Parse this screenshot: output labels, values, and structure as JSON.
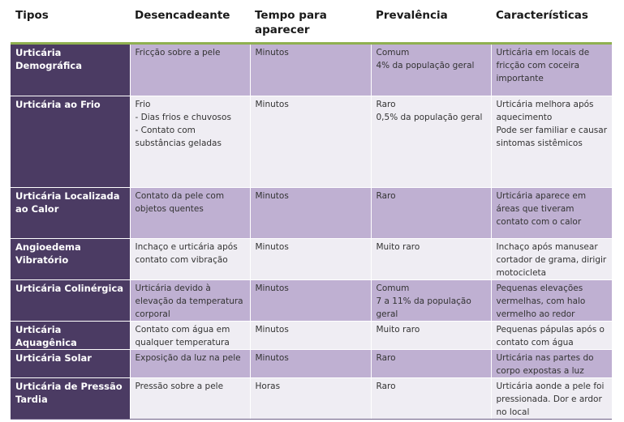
{
  "headers": [
    "Tipos",
    "Desencadeante",
    "Tempo para aparecer",
    "Prevalência",
    "Características"
  ],
  "rows": [
    {
      "tipo": "Urticária Demográfica",
      "desencadeante": "Fricção sobre a pele",
      "tempo": "Minutos",
      "prevalencia": "Comum\n4% da população geral",
      "caracteristicas": "Urticária em locais de fricção com coceira importante"
    },
    {
      "tipo": "Urticária ao Frio",
      "desencadeante": "Frio\n- Dias frios e chuvosos\n- Contato com substâncias geladas",
      "tempo": "Minutos",
      "prevalencia": "Raro\n0,5% da população geral",
      "caracteristicas": "Urticária melhora após aquecimento\nPode ser familiar e causar sintomas sistêmicos"
    },
    {
      "tipo": "Urticária Localizada ao Calor",
      "desencadeante": "Contato da pele com objetos quentes",
      "tempo": "Minutos",
      "prevalencia": "Raro",
      "caracteristicas": "Urticária aparece em áreas que tiveram contato com o calor"
    },
    {
      "tipo": "Angioedema Vibratório",
      "desencadeante": "Inchaço e urticária após contato com vibração",
      "tempo": "Minutos",
      "prevalencia": "Muito raro",
      "caracteristicas": "Inchaço após manusear cortador de grama, dirigir motocicleta"
    },
    {
      "tipo": "Urticária Colinérgica",
      "desencadeante": "Urticária devido à elevação da temperatura corporal",
      "tempo": "Minutos",
      "prevalencia": "Comum\n7 a 11% da população geral",
      "caracteristicas": "Pequenas elevações vermelhas, com halo vermelho ao redor"
    },
    {
      "tipo": "Urticária Aquagênica",
      "desencadeante": "Contato com água em qualquer temperatura",
      "tempo": "Minutos",
      "prevalencia": "Muito raro",
      "caracteristicas": "Pequenas pápulas após o contato com água"
    },
    {
      "tipo": "Urticária Solar",
      "desencadeante": "Exposição da luz na pele",
      "tempo": "Minutos",
      "prevalencia": "Raro",
      "caracteristicas": "Urticária nas partes do corpo expostas a luz"
    },
    {
      "tipo": "Urticária de Pressão Tardia",
      "desencadeante": "Pressão sobre a pele",
      "tempo": "Horas",
      "prevalencia": "Raro",
      "caracteristicas": "Urticária aonde a pele foi pressionada. Dor e ardor no local"
    }
  ],
  "colors": {
    "type_column": "#4b3b63",
    "row_dark": "#bfb0d2",
    "row_light": "#efedf3",
    "header_rule": "#8fb050"
  }
}
